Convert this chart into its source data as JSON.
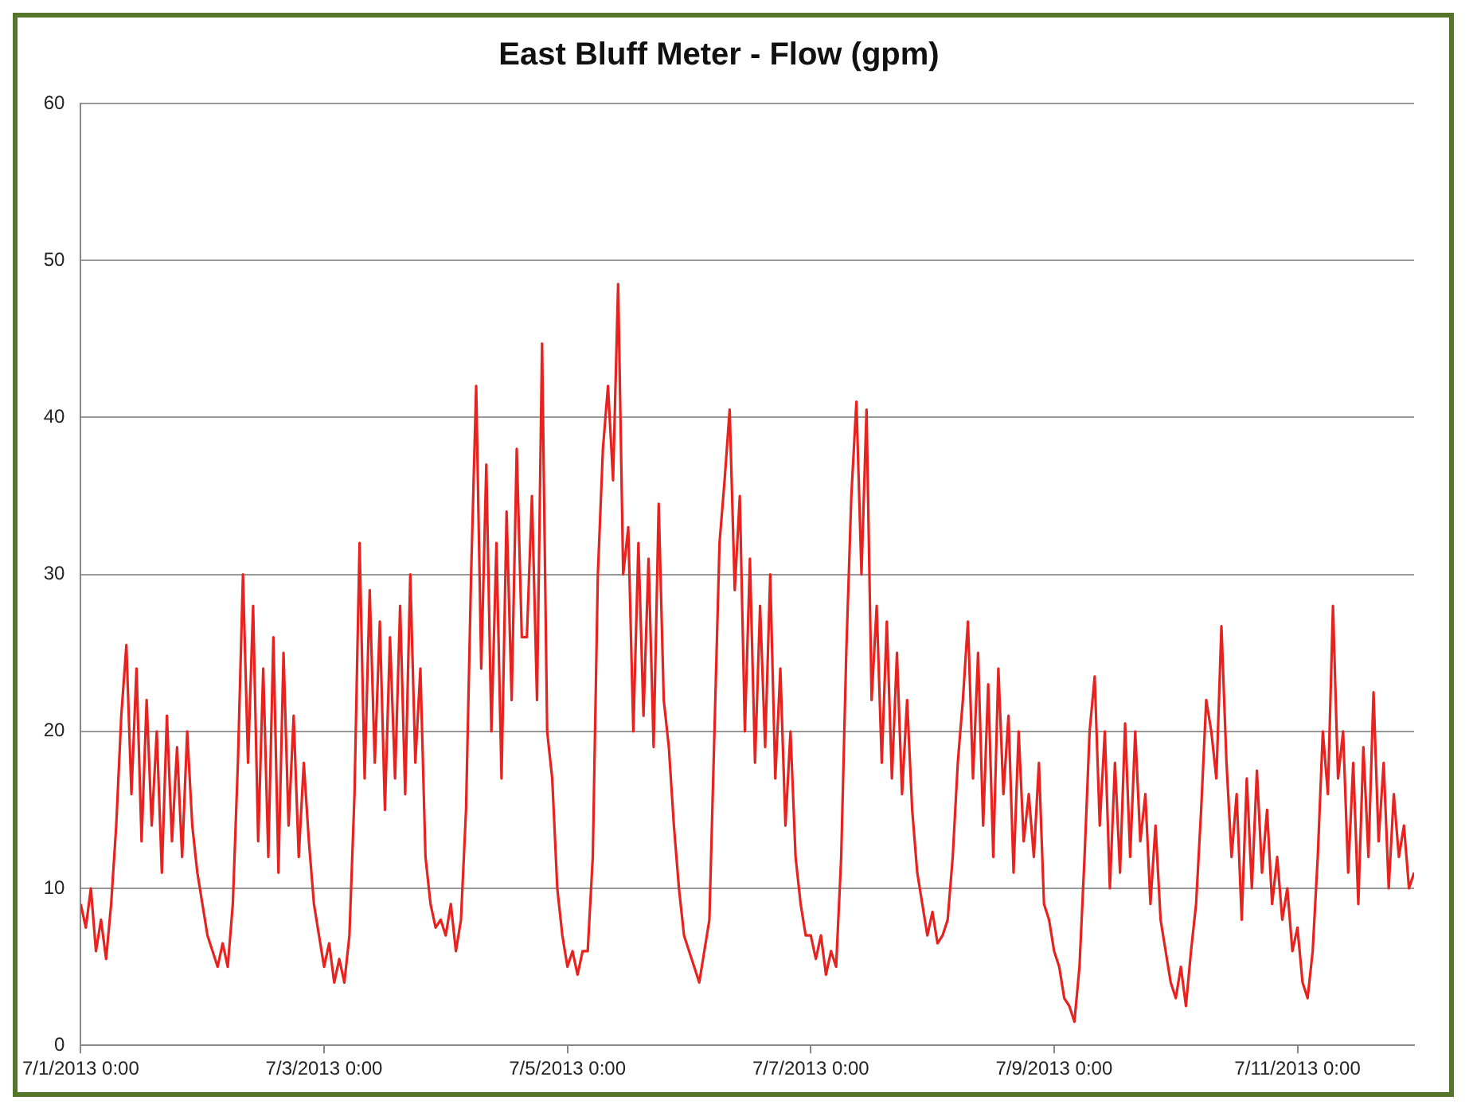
{
  "chart_data": {
    "type": "line",
    "title": "East Bluff Meter - Flow (gpm)",
    "x": [
      "2013-07-01T00:00",
      "2013-07-01T01:00",
      "2013-07-01T02:00",
      "2013-07-01T03:00",
      "2013-07-01T04:00",
      "2013-07-01T05:00",
      "2013-07-01T06:00",
      "2013-07-01T07:00",
      "2013-07-01T08:00",
      "2013-07-01T09:00",
      "2013-07-01T10:00",
      "2013-07-01T11:00",
      "2013-07-01T12:00",
      "2013-07-01T13:00",
      "2013-07-01T14:00",
      "2013-07-01T15:00",
      "2013-07-01T16:00",
      "2013-07-01T17:00",
      "2013-07-01T18:00",
      "2013-07-01T19:00",
      "2013-07-01T20:00",
      "2013-07-01T21:00",
      "2013-07-01T22:00",
      "2013-07-01T23:00",
      "2013-07-02T00:00",
      "2013-07-02T01:00",
      "2013-07-02T02:00",
      "2013-07-02T03:00",
      "2013-07-02T04:00",
      "2013-07-02T05:00",
      "2013-07-02T06:00",
      "2013-07-02T07:00",
      "2013-07-02T08:00",
      "2013-07-02T09:00",
      "2013-07-02T10:00",
      "2013-07-02T11:00",
      "2013-07-02T12:00",
      "2013-07-02T13:00",
      "2013-07-02T14:00",
      "2013-07-02T15:00",
      "2013-07-02T16:00",
      "2013-07-02T17:00",
      "2013-07-02T18:00",
      "2013-07-02T19:00",
      "2013-07-02T20:00",
      "2013-07-02T21:00",
      "2013-07-02T22:00",
      "2013-07-02T23:00",
      "2013-07-03T00:00",
      "2013-07-03T01:00",
      "2013-07-03T02:00",
      "2013-07-03T03:00",
      "2013-07-03T04:00",
      "2013-07-03T05:00",
      "2013-07-03T06:00",
      "2013-07-03T07:00",
      "2013-07-03T08:00",
      "2013-07-03T09:00",
      "2013-07-03T10:00",
      "2013-07-03T11:00",
      "2013-07-03T12:00",
      "2013-07-03T13:00",
      "2013-07-03T14:00",
      "2013-07-03T15:00",
      "2013-07-03T16:00",
      "2013-07-03T17:00",
      "2013-07-03T18:00",
      "2013-07-03T19:00",
      "2013-07-03T20:00",
      "2013-07-03T21:00",
      "2013-07-03T22:00",
      "2013-07-03T23:00",
      "2013-07-04T00:00",
      "2013-07-04T01:00",
      "2013-07-04T02:00",
      "2013-07-04T03:00",
      "2013-07-04T04:00",
      "2013-07-04T05:00",
      "2013-07-04T06:00",
      "2013-07-04T07:00",
      "2013-07-04T08:00",
      "2013-07-04T09:00",
      "2013-07-04T10:00",
      "2013-07-04T11:00",
      "2013-07-04T12:00",
      "2013-07-04T13:00",
      "2013-07-04T14:00",
      "2013-07-04T15:00",
      "2013-07-04T16:00",
      "2013-07-04T17:00",
      "2013-07-04T18:00",
      "2013-07-04T19:00",
      "2013-07-04T20:00",
      "2013-07-04T21:00",
      "2013-07-04T22:00",
      "2013-07-04T23:00",
      "2013-07-05T00:00",
      "2013-07-05T01:00",
      "2013-07-05T02:00",
      "2013-07-05T03:00",
      "2013-07-05T04:00",
      "2013-07-05T05:00",
      "2013-07-05T06:00",
      "2013-07-05T07:00",
      "2013-07-05T08:00",
      "2013-07-05T09:00",
      "2013-07-05T10:00",
      "2013-07-05T11:00",
      "2013-07-05T12:00",
      "2013-07-05T13:00",
      "2013-07-05T14:00",
      "2013-07-05T15:00",
      "2013-07-05T16:00",
      "2013-07-05T17:00",
      "2013-07-05T18:00",
      "2013-07-05T19:00",
      "2013-07-05T20:00",
      "2013-07-05T21:00",
      "2013-07-05T22:00",
      "2013-07-05T23:00",
      "2013-07-06T00:00",
      "2013-07-06T01:00",
      "2013-07-06T02:00",
      "2013-07-06T03:00",
      "2013-07-06T04:00",
      "2013-07-06T05:00",
      "2013-07-06T06:00",
      "2013-07-06T07:00",
      "2013-07-06T08:00",
      "2013-07-06T09:00",
      "2013-07-06T10:00",
      "2013-07-06T11:00",
      "2013-07-06T12:00",
      "2013-07-06T13:00",
      "2013-07-06T14:00",
      "2013-07-06T15:00",
      "2013-07-06T16:00",
      "2013-07-06T17:00",
      "2013-07-06T18:00",
      "2013-07-06T19:00",
      "2013-07-06T20:00",
      "2013-07-06T21:00",
      "2013-07-06T22:00",
      "2013-07-06T23:00",
      "2013-07-07T00:00",
      "2013-07-07T01:00",
      "2013-07-07T02:00",
      "2013-07-07T03:00",
      "2013-07-07T04:00",
      "2013-07-07T05:00",
      "2013-07-07T06:00",
      "2013-07-07T07:00",
      "2013-07-07T08:00",
      "2013-07-07T09:00",
      "2013-07-07T10:00",
      "2013-07-07T11:00",
      "2013-07-07T12:00",
      "2013-07-07T13:00",
      "2013-07-07T14:00",
      "2013-07-07T15:00",
      "2013-07-07T16:00",
      "2013-07-07T17:00",
      "2013-07-07T18:00",
      "2013-07-07T19:00",
      "2013-07-07T20:00",
      "2013-07-07T21:00",
      "2013-07-07T22:00",
      "2013-07-07T23:00",
      "2013-07-08T00:00",
      "2013-07-08T01:00",
      "2013-07-08T02:00",
      "2013-07-08T03:00",
      "2013-07-08T04:00",
      "2013-07-08T05:00",
      "2013-07-08T06:00",
      "2013-07-08T07:00",
      "2013-07-08T08:00",
      "2013-07-08T09:00",
      "2013-07-08T10:00",
      "2013-07-08T11:00",
      "2013-07-08T12:00",
      "2013-07-08T13:00",
      "2013-07-08T14:00",
      "2013-07-08T15:00",
      "2013-07-08T16:00",
      "2013-07-08T17:00",
      "2013-07-08T18:00",
      "2013-07-08T19:00",
      "2013-07-08T20:00",
      "2013-07-08T21:00",
      "2013-07-08T22:00",
      "2013-07-08T23:00",
      "2013-07-09T00:00",
      "2013-07-09T01:00",
      "2013-07-09T02:00",
      "2013-07-09T03:00",
      "2013-07-09T04:00",
      "2013-07-09T05:00",
      "2013-07-09T06:00",
      "2013-07-09T07:00",
      "2013-07-09T08:00",
      "2013-07-09T09:00",
      "2013-07-09T10:00",
      "2013-07-09T11:00",
      "2013-07-09T12:00",
      "2013-07-09T13:00",
      "2013-07-09T14:00",
      "2013-07-09T15:00",
      "2013-07-09T16:00",
      "2013-07-09T17:00",
      "2013-07-09T18:00",
      "2013-07-09T19:00",
      "2013-07-09T20:00",
      "2013-07-09T21:00",
      "2013-07-09T22:00",
      "2013-07-09T23:00",
      "2013-07-10T00:00",
      "2013-07-10T01:00",
      "2013-07-10T02:00",
      "2013-07-10T03:00",
      "2013-07-10T04:00",
      "2013-07-10T05:00",
      "2013-07-10T06:00",
      "2013-07-10T07:00",
      "2013-07-10T08:00",
      "2013-07-10T09:00",
      "2013-07-10T10:00",
      "2013-07-10T11:00",
      "2013-07-10T12:00",
      "2013-07-10T13:00",
      "2013-07-10T14:00",
      "2013-07-10T15:00",
      "2013-07-10T16:00",
      "2013-07-10T17:00",
      "2013-07-10T18:00",
      "2013-07-10T19:00",
      "2013-07-10T20:00",
      "2013-07-10T21:00",
      "2013-07-10T22:00",
      "2013-07-10T23:00",
      "2013-07-11T00:00",
      "2013-07-11T01:00",
      "2013-07-11T02:00",
      "2013-07-11T03:00",
      "2013-07-11T04:00",
      "2013-07-11T05:00",
      "2013-07-11T06:00",
      "2013-07-11T07:00",
      "2013-07-11T08:00",
      "2013-07-11T09:00",
      "2013-07-11T10:00",
      "2013-07-11T11:00",
      "2013-07-11T12:00",
      "2013-07-11T13:00",
      "2013-07-11T14:00",
      "2013-07-11T15:00",
      "2013-07-11T16:00",
      "2013-07-11T17:00",
      "2013-07-11T18:00",
      "2013-07-11T19:00",
      "2013-07-11T20:00",
      "2013-07-11T21:00",
      "2013-07-11T22:00",
      "2013-07-11T23:00"
    ],
    "series": [
      {
        "color": "#e8231f",
        "values": [
          9,
          7.5,
          10,
          6,
          8,
          5.5,
          9,
          14,
          21,
          25.5,
          16,
          24,
          13,
          22,
          14,
          20,
          11,
          21,
          13,
          19,
          12,
          20,
          14,
          11,
          9,
          7,
          6,
          5,
          6.5,
          5,
          9,
          18,
          30,
          18,
          28,
          13,
          24,
          12,
          26,
          11,
          25,
          14,
          21,
          12,
          18,
          13,
          9,
          7,
          5,
          6.5,
          4,
          5.5,
          4,
          7,
          16,
          32,
          17,
          29,
          18,
          27,
          15,
          26,
          17,
          28,
          16,
          30,
          18,
          24,
          12,
          9,
          7.5,
          8,
          7,
          9,
          6,
          8,
          15,
          30,
          42,
          24,
          37,
          20,
          32,
          17,
          34,
          22,
          38,
          26,
          26,
          35,
          22,
          44.7,
          20,
          17,
          10,
          7,
          5,
          6,
          4.5,
          6,
          6,
          12,
          30,
          38,
          42,
          36,
          48.5,
          30,
          33,
          20,
          32,
          21,
          31,
          19,
          34.5,
          22,
          19,
          14,
          10,
          7,
          6,
          5,
          4,
          6,
          8,
          20,
          32,
          36,
          40.5,
          29,
          35,
          20,
          31,
          18,
          28,
          19,
          30,
          17,
          24,
          14,
          20,
          12,
          9,
          7,
          7,
          5.5,
          7,
          4.5,
          6,
          5,
          12,
          25,
          35,
          41,
          30,
          40.5,
          22,
          28,
          18,
          27,
          17,
          25,
          16,
          22,
          15,
          11,
          9,
          7,
          8.5,
          6.5,
          7,
          8,
          12,
          18,
          22,
          27,
          17,
          25,
          14,
          23,
          12,
          24,
          16,
          21,
          11,
          20,
          13,
          16,
          12,
          18,
          9,
          8,
          6,
          5,
          3,
          2.5,
          1.5,
          5,
          12,
          20,
          23.5,
          14,
          20,
          10,
          18,
          11,
          20.5,
          12,
          20,
          13,
          16,
          9,
          14,
          8,
          6,
          4,
          3,
          5,
          2.5,
          6,
          9,
          15,
          22,
          20,
          17,
          26.7,
          18,
          12,
          16,
          8,
          17,
          10,
          17.5,
          11,
          15,
          9,
          12,
          8,
          10,
          6,
          7.5,
          4,
          3,
          6,
          12,
          20,
          16,
          28,
          17,
          20,
          11,
          18,
          9,
          19,
          12,
          22.5,
          13,
          18,
          10,
          16,
          12,
          14,
          10,
          11
        ]
      }
    ],
    "xlim": [
      "2013-07-01T00:00",
      "2013-07-11T23:00"
    ],
    "xticks": [
      {
        "value": "2013-07-01T00:00",
        "label": "7/1/2013 0:00"
      },
      {
        "value": "2013-07-03T00:00",
        "label": "7/3/2013 0:00"
      },
      {
        "value": "2013-07-05T00:00",
        "label": "7/5/2013 0:00"
      },
      {
        "value": "2013-07-07T00:00",
        "label": "7/7/2013 0:00"
      },
      {
        "value": "2013-07-09T00:00",
        "label": "7/9/2013 0:00"
      },
      {
        "value": "2013-07-11T00:00",
        "label": "7/11/2013 0:00"
      }
    ],
    "ylim": [
      0,
      60
    ],
    "yticks": [
      0,
      10,
      20,
      30,
      40,
      50,
      60
    ],
    "grid": "y",
    "legend": false,
    "marker": "none",
    "line_style": "solid"
  }
}
